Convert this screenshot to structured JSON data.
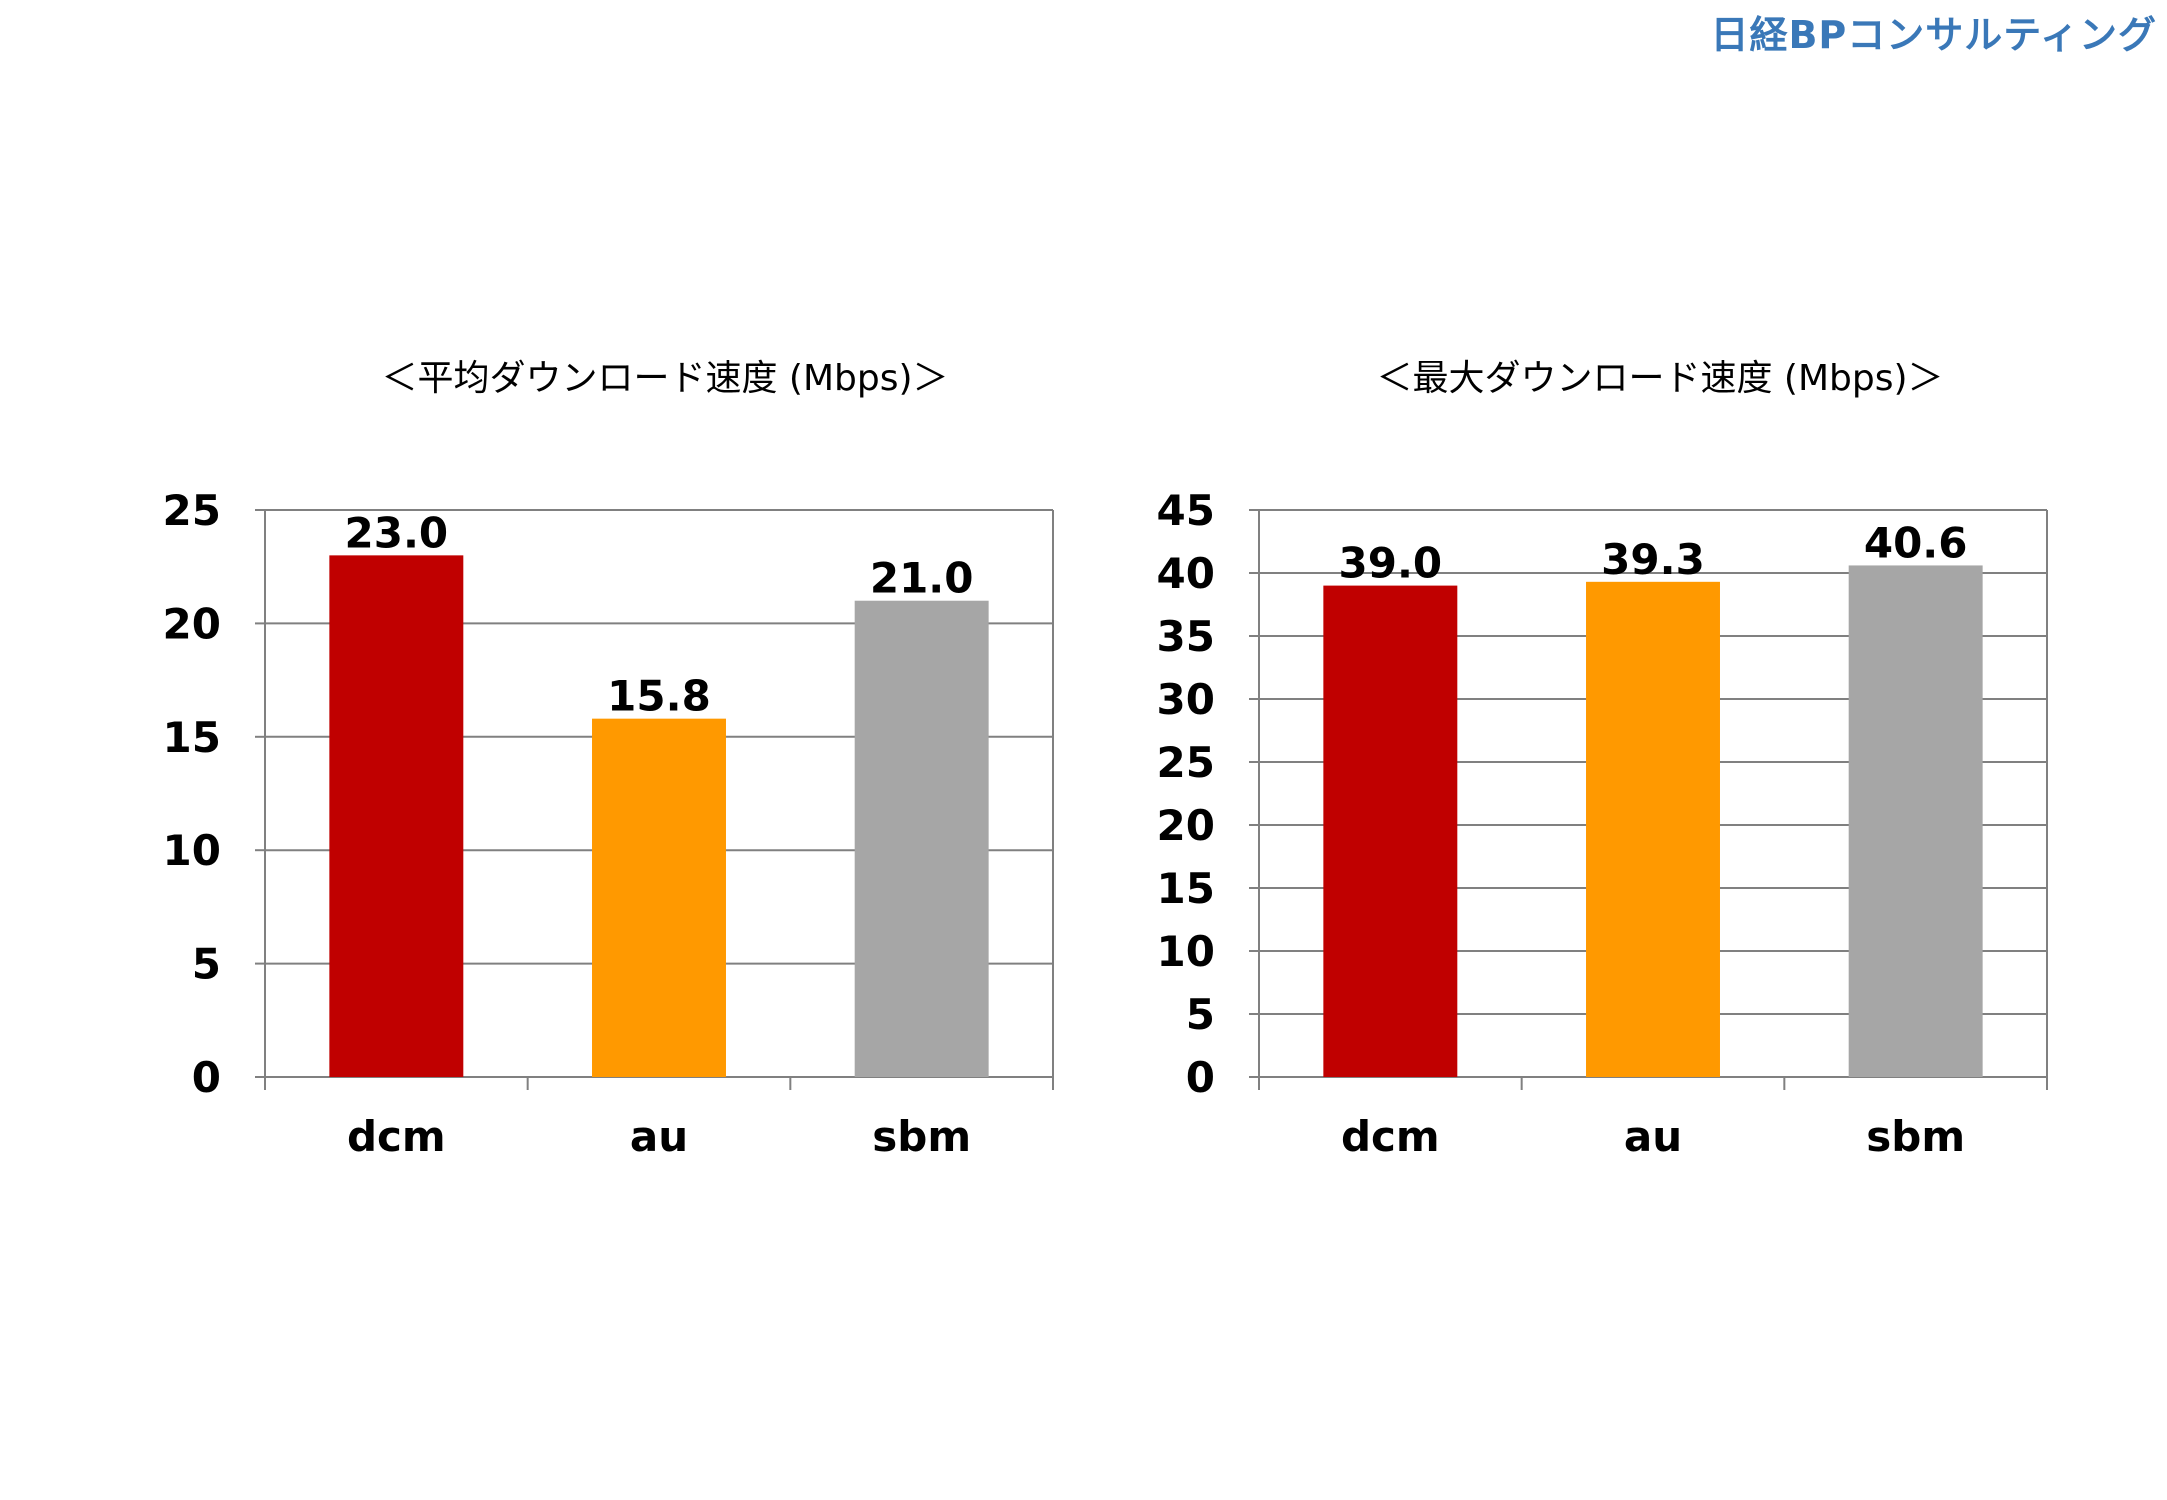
{
  "brand": {
    "text": "日経BPコンサルティング",
    "color": "#3a78b8"
  },
  "colors": {
    "dcm": "#c00000",
    "au": "#ff9900",
    "sbm": "#a6a6a6",
    "gridline": "#808080",
    "text": "#000000"
  },
  "chart_data": [
    {
      "type": "bar",
      "title": "＜平均ダウンロード速度 (Mbps)＞",
      "categories": [
        "dcm",
        "au",
        "sbm"
      ],
      "values": [
        23.0,
        15.8,
        21.0
      ],
      "value_labels": [
        "23.0",
        "15.8",
        "21.0"
      ],
      "ylim": [
        0,
        25
      ],
      "yticks": [
        0,
        5,
        10,
        15,
        20,
        25
      ],
      "grid": true,
      "legend": "none"
    },
    {
      "type": "bar",
      "title": "＜最大ダウンロード速度 (Mbps)＞",
      "categories": [
        "dcm",
        "au",
        "sbm"
      ],
      "values": [
        39.0,
        39.3,
        40.6
      ],
      "value_labels": [
        "39.0",
        "39.3",
        "40.6"
      ],
      "ylim": [
        0,
        45
      ],
      "yticks": [
        0,
        5,
        10,
        15,
        20,
        25,
        30,
        35,
        40,
        45
      ],
      "grid": true,
      "legend": "none"
    }
  ]
}
